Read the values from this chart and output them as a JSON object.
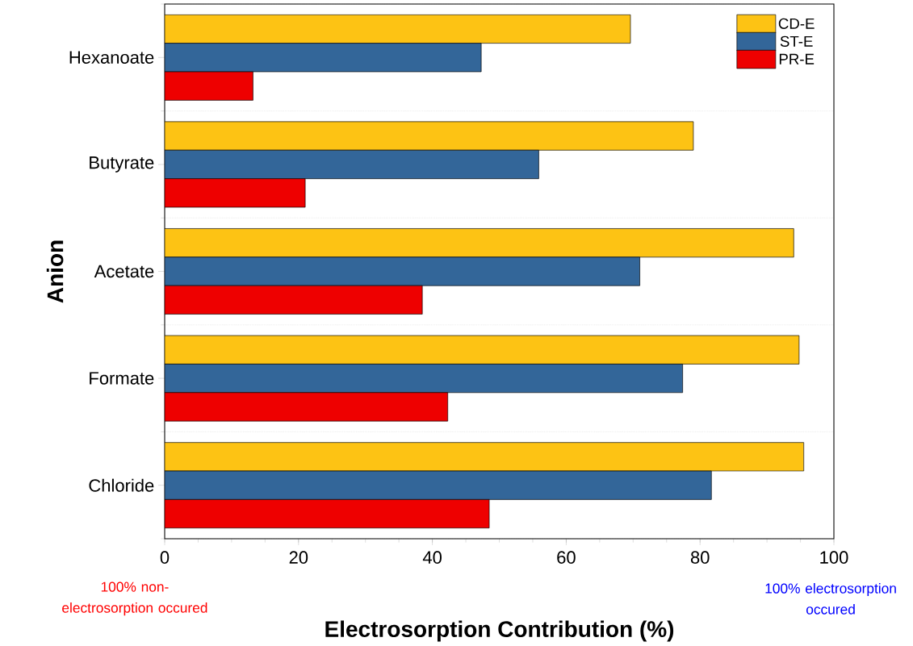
{
  "chart_data": {
    "type": "bar",
    "orientation": "horizontal",
    "xlabel": "Electrosorption Contribution (%)",
    "ylabel": "Anion",
    "categories": [
      "Hexanoate",
      "Butyrate",
      "Acetate",
      "Formate",
      "Chloride"
    ],
    "series": [
      {
        "name": "CD-E",
        "color": "#fdc314",
        "values": [
          69.6,
          79.0,
          94.0,
          94.8,
          95.5
        ]
      },
      {
        "name": "ST-E",
        "color": "#336699",
        "values": [
          47.3,
          55.9,
          71.0,
          77.4,
          81.7
        ]
      },
      {
        "name": "PR-E",
        "color": "#ee0000",
        "values": [
          13.2,
          21.0,
          38.5,
          42.3,
          48.5
        ]
      }
    ],
    "xlim": [
      0,
      100
    ],
    "xticks": [
      0,
      20,
      40,
      60,
      80,
      100
    ],
    "grid": "y",
    "legend": "top right",
    "annotations": [
      "100% non-electrosorption occured",
      "100% electrosorption occured"
    ]
  }
}
